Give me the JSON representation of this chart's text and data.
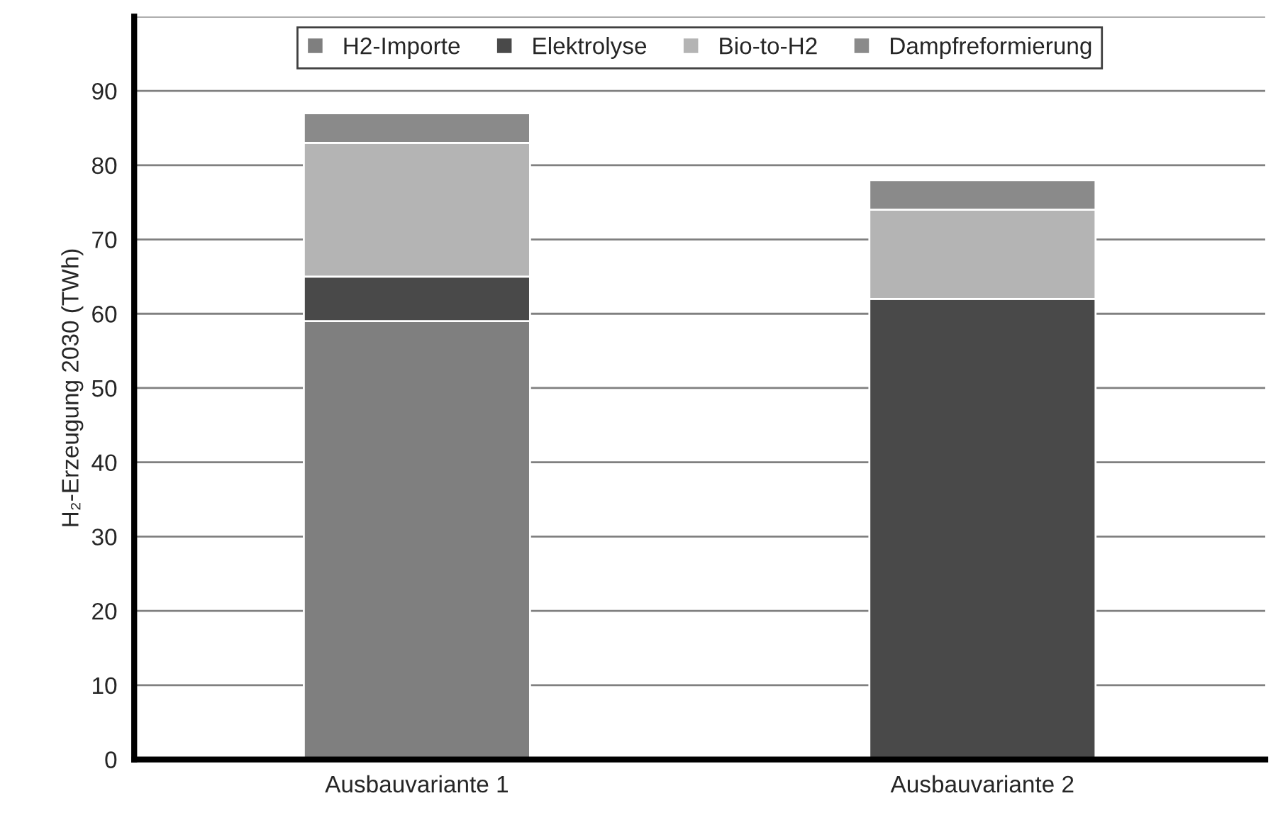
{
  "chart_data": {
    "type": "bar",
    "stacked": true,
    "ylabel": "H₂-Erzeugung 2030 (TWh)",
    "categories": [
      "Ausbauvariante 1",
      "Ausbauvariante 2"
    ],
    "series": [
      {
        "name": "H2-Importe",
        "color": "#7f7f7f",
        "values": [
          59,
          0
        ]
      },
      {
        "name": "Elektrolyse",
        "color": "#494949",
        "values": [
          6,
          62
        ]
      },
      {
        "name": "Bio-to-H2",
        "color": "#b4b4b4",
        "values": [
          18,
          12
        ]
      },
      {
        "name": "Dampfreformierung",
        "color": "#8a8a8a",
        "values": [
          4,
          4
        ]
      }
    ],
    "ylim": [
      0,
      100
    ],
    "yticks": [
      0,
      10,
      20,
      30,
      40,
      50,
      60,
      70,
      80,
      90,
      {
        "value": 100,
        "label": null
      }
    ],
    "grid": "y",
    "legend": "top"
  }
}
